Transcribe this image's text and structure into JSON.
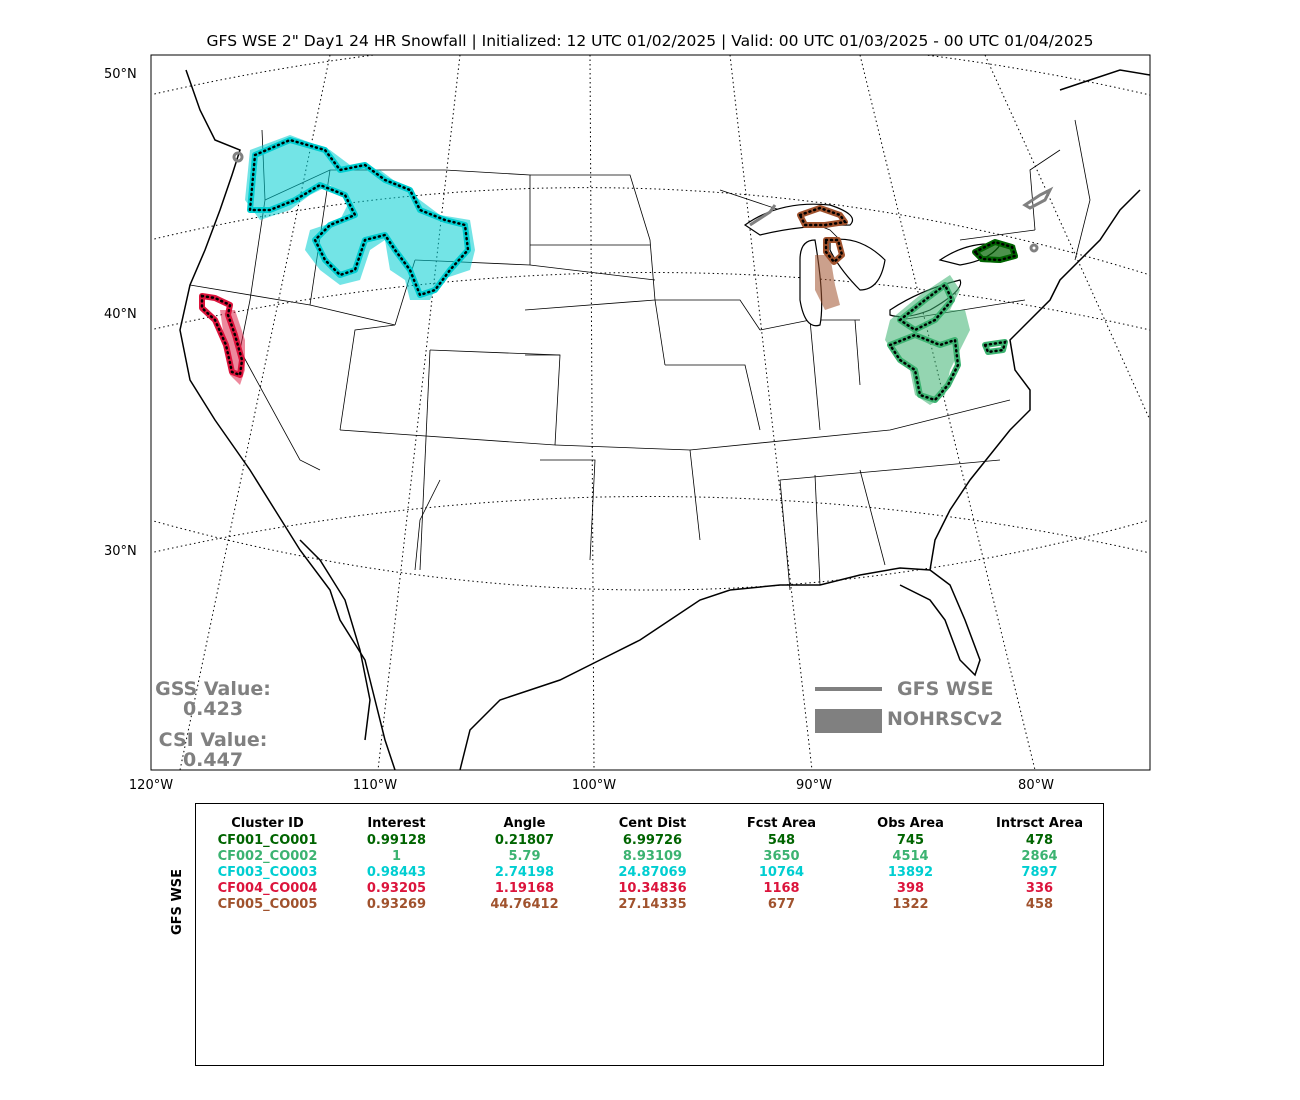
{
  "title": "GFS WSE 2\" Day1 24 HR Snowfall | Initialized: 12 UTC 01/02/2025 | Valid: 00 UTC 01/03/2025 - 00 UTC 01/04/2025",
  "lat_labels": [
    "50°N",
    "40°N",
    "30°N"
  ],
  "lon_labels": [
    "120°W",
    "110°W",
    "100°W",
    "90°W",
    "80°W"
  ],
  "stats": {
    "gss_label": "GSS Value:",
    "gss_value": "0.423",
    "csi_label": "CSI Value:",
    "csi_value": "0.447"
  },
  "legend": {
    "forecast_label": "GFS WSE",
    "observed_label": "NOHRSCv2",
    "color": "#808080"
  },
  "table": {
    "ylabel": "GFS WSE",
    "headers": [
      "Cluster ID",
      "Interest",
      "Angle",
      "Cent Dist",
      "Fcst Area",
      "Obs Area",
      "Intrsct Area"
    ],
    "rows": [
      {
        "id": "CF001_CO001",
        "interest": "0.99128",
        "angle": "0.21807",
        "cent_dist": "6.99726",
        "fcst_area": "548",
        "obs_area": "745",
        "intrsct_area": "478",
        "color": "#006400"
      },
      {
        "id": "CF002_CO002",
        "interest": "1",
        "angle": "5.79",
        "cent_dist": "8.93109",
        "fcst_area": "3650",
        "obs_area": "4514",
        "intrsct_area": "2864",
        "color": "#3cb371"
      },
      {
        "id": "CF003_CO003",
        "interest": "0.98443",
        "angle": "2.74198",
        "cent_dist": "24.87069",
        "fcst_area": "10764",
        "obs_area": "13892",
        "intrsct_area": "7897",
        "color": "#00ced1"
      },
      {
        "id": "CF004_CO004",
        "interest": "0.93205",
        "angle": "1.19168",
        "cent_dist": "10.34836",
        "fcst_area": "1168",
        "obs_area": "398",
        "intrsct_area": "336",
        "color": "#dc143c"
      },
      {
        "id": "CF005_CO005",
        "interest": "0.93269",
        "angle": "44.76412",
        "cent_dist": "27.14335",
        "fcst_area": "677",
        "obs_area": "1322",
        "intrsct_area": "458",
        "color": "#a0522d"
      }
    ]
  },
  "clusters": [
    {
      "name": "cluster-cf001",
      "color": "#006400"
    },
    {
      "name": "cluster-cf002",
      "color": "#3cb371"
    },
    {
      "name": "cluster-cf003",
      "color": "#00ced1"
    },
    {
      "name": "cluster-cf004",
      "color": "#dc143c"
    },
    {
      "name": "cluster-cf005",
      "color": "#a0522d"
    }
  ]
}
